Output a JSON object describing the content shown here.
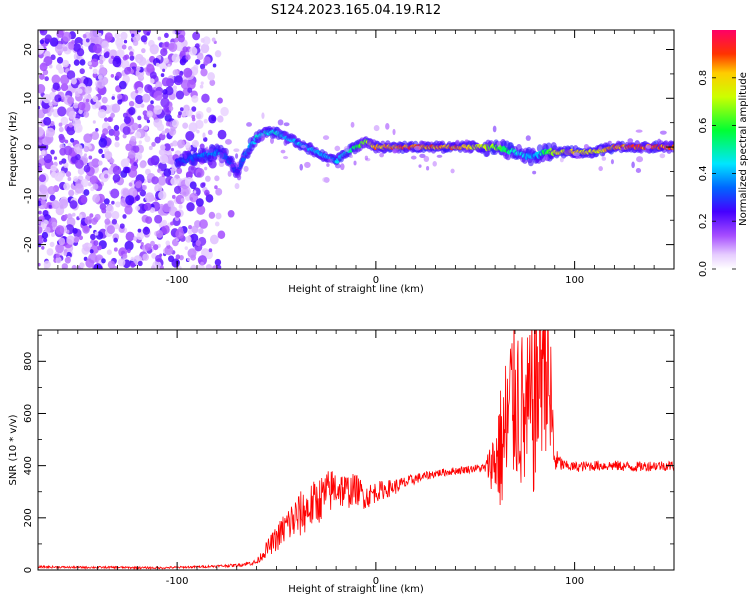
{
  "title": "S124.2023.165.04.19.R12",
  "chart_data": [
    {
      "type": "heatmap",
      "xlabel": "Height of straight line (km)",
      "ylabel": "Frequency (Hz)",
      "xlim": [
        -170,
        150
      ],
      "ylim": [
        -25,
        24
      ],
      "x_ticks": [
        -100,
        0,
        100
      ],
      "x_tick_labels": [
        "-100",
        "0",
        "100"
      ],
      "y_ticks": [
        -20,
        -10,
        0,
        10,
        20
      ],
      "y_tick_labels": [
        "-20",
        "-10",
        "0",
        "10",
        "20"
      ],
      "colorbar": {
        "label": "Normalized spectral amplitude",
        "range": [
          0,
          1
        ],
        "ticks": [
          0.0,
          0.2,
          0.4,
          0.6,
          0.8
        ],
        "tick_labels": [
          "0.0",
          "0.2",
          "0.4",
          "0.6",
          "0.8"
        ],
        "colormap": "rainbow (white-violet-blue-cyan-green-yellow-red-pink)"
      },
      "ridge": {
        "x": [
          -100,
          -90,
          -80,
          -75,
          -70,
          -65,
          -60,
          -55,
          -50,
          -45,
          -40,
          -35,
          -30,
          -25,
          -20,
          -15,
          -10,
          -5,
          0,
          20,
          40,
          60,
          70,
          75,
          80,
          85,
          90,
          100,
          110,
          120,
          130,
          140,
          150
        ],
        "freq": [
          -3,
          -2,
          -1,
          -2,
          -5,
          -1,
          2,
          3,
          3,
          2,
          1,
          0,
          -1,
          -2,
          -3,
          -1,
          0,
          1,
          0,
          0,
          0,
          0,
          -1,
          -2,
          -2,
          -1,
          -1,
          -1,
          -1,
          0,
          0,
          0,
          0
        ],
        "amplitude": [
          0.3,
          0.35,
          0.4,
          0.35,
          0.3,
          0.4,
          0.5,
          0.5,
          0.5,
          0.45,
          0.45,
          0.45,
          0.45,
          0.45,
          0.45,
          0.5,
          0.6,
          0.7,
          0.9,
          0.95,
          0.9,
          0.7,
          0.5,
          0.45,
          0.4,
          0.6,
          0.8,
          0.85,
          0.8,
          0.9,
          0.95,
          0.95,
          0.95
        ]
      }
    },
    {
      "type": "line",
      "xlabel": "Height of straight line (km)",
      "ylabel": "SNR (10 * v/v)",
      "xlim": [
        -170,
        150
      ],
      "ylim": [
        0,
        920
      ],
      "x_ticks": [
        -100,
        0,
        100
      ],
      "x_tick_labels": [
        "-100",
        "0",
        "100"
      ],
      "y_ticks": [
        0,
        200,
        400,
        600,
        800
      ],
      "y_tick_labels": [
        "0",
        "200",
        "400",
        "600",
        "800"
      ],
      "series": [
        {
          "color": "#ff0000",
          "x": [
            -170,
            -150,
            -130,
            -110,
            -100,
            -90,
            -80,
            -70,
            -60,
            -55,
            -50,
            -45,
            -40,
            -35,
            -30,
            -25,
            -20,
            -15,
            -10,
            -5,
            0,
            10,
            20,
            30,
            40,
            50,
            55,
            60,
            65,
            70,
            75,
            80,
            85,
            88,
            90,
            95,
            100,
            110,
            120,
            130,
            140,
            150
          ],
          "values": [
            12,
            10,
            10,
            8,
            10,
            12,
            15,
            18,
            30,
            80,
            120,
            170,
            200,
            230,
            260,
            290,
            320,
            300,
            310,
            280,
            300,
            320,
            350,
            370,
            380,
            390,
            390,
            420,
            500,
            700,
            560,
            650,
            890,
            600,
            420,
            400,
            395,
            400,
            400,
            395,
            400,
            400
          ],
          "noise_envelope": [
            4,
            4,
            4,
            4,
            4,
            4,
            5,
            6,
            10,
            30,
            50,
            70,
            90,
            90,
            90,
            90,
            80,
            70,
            60,
            50,
            40,
            30,
            20,
            15,
            15,
            15,
            20,
            150,
            330,
            380,
            300,
            380,
            400,
            350,
            50,
            20,
            20,
            20,
            20,
            20,
            20,
            20
          ]
        }
      ]
    }
  ]
}
